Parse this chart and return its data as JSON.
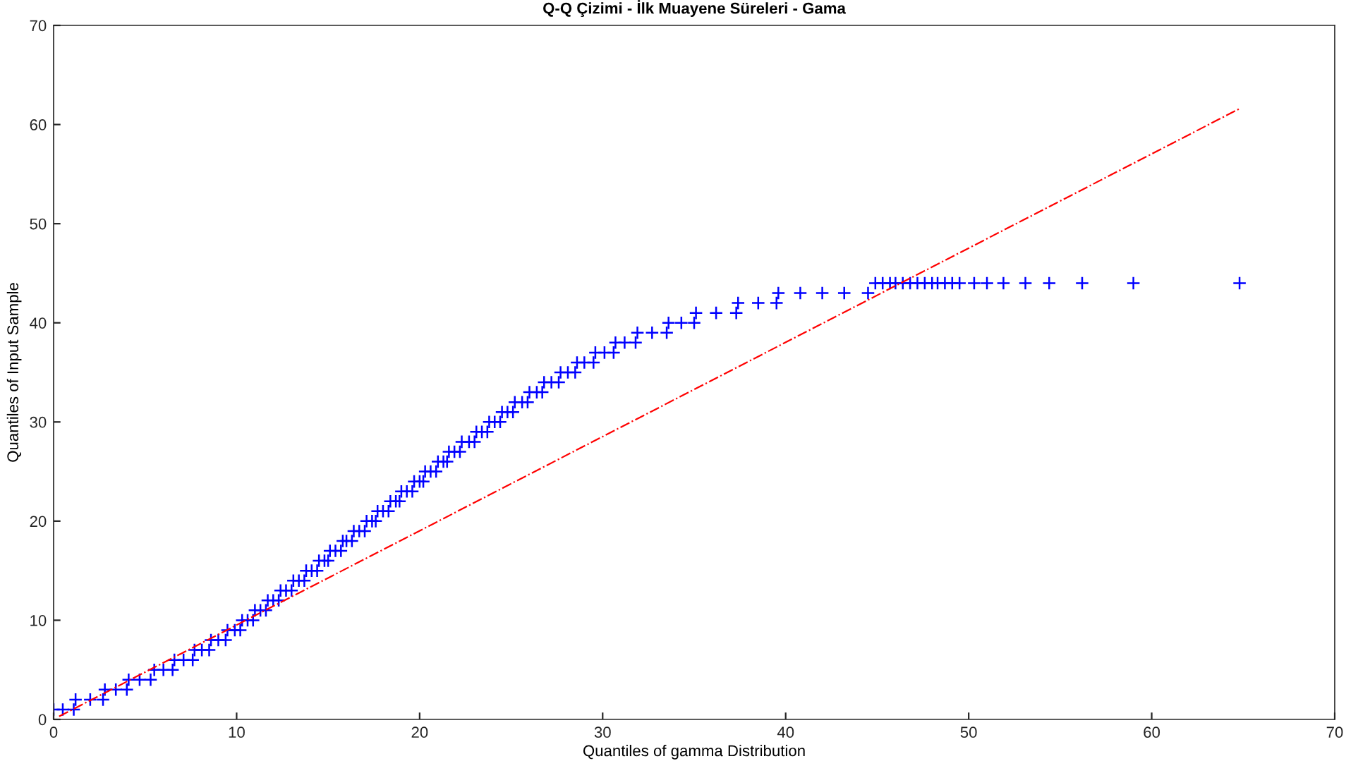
{
  "chart_data": {
    "type": "scatter",
    "title": "Q-Q Çizimi - İlk Muayene Süreleri - Gama",
    "xlabel": "Quantiles of gamma Distribution",
    "ylabel": "Quantiles of Input Sample",
    "xlim": [
      0,
      70
    ],
    "ylim": [
      0,
      70
    ],
    "xticks": [
      0,
      10,
      20,
      30,
      40,
      50,
      60,
      70
    ],
    "yticks": [
      0,
      10,
      20,
      30,
      40,
      50,
      60,
      70
    ],
    "grid": false,
    "legend": false,
    "series": [
      {
        "color": "#0000ff",
        "marker": "cross",
        "x": [
          0.0,
          0.5,
          1.1,
          1.2,
          2.0,
          2.7,
          2.8,
          3.4,
          4.0,
          4.1,
          4.7,
          5.3,
          5.5,
          6.0,
          6.5,
          6.6,
          7.1,
          7.6,
          7.7,
          8.1,
          8.5,
          8.6,
          9.0,
          9.4,
          9.5,
          9.9,
          10.2,
          10.3,
          10.6,
          10.9,
          11.0,
          11.3,
          11.6,
          11.7,
          12.0,
          12.3,
          12.4,
          12.7,
          13.0,
          13.1,
          13.4,
          13.7,
          13.8,
          14.1,
          14.4,
          14.5,
          14.8,
          15.0,
          15.1,
          15.4,
          15.7,
          15.8,
          16.0,
          16.3,
          16.4,
          16.7,
          17.0,
          17.1,
          17.4,
          17.6,
          17.7,
          18.0,
          18.3,
          18.4,
          18.7,
          18.9,
          19.0,
          19.3,
          19.6,
          19.7,
          20.0,
          20.2,
          20.3,
          20.6,
          20.9,
          21.0,
          21.3,
          21.5,
          21.6,
          21.9,
          22.2,
          22.3,
          22.7,
          23.0,
          23.1,
          23.4,
          23.7,
          23.8,
          24.1,
          24.4,
          24.5,
          24.8,
          25.1,
          25.2,
          25.6,
          25.9,
          26.0,
          26.4,
          26.7,
          26.8,
          27.2,
          27.6,
          27.7,
          28.1,
          28.5,
          28.6,
          29.0,
          29.5,
          29.6,
          30.1,
          30.6,
          30.7,
          31.2,
          31.8,
          31.9,
          32.7,
          33.5,
          33.6,
          34.3,
          35.0,
          35.1,
          36.2,
          37.3,
          37.4,
          38.5,
          39.5,
          39.6,
          40.8,
          42.0,
          43.2,
          44.5,
          44.9,
          45.3,
          45.7,
          46.0,
          46.4,
          46.8,
          47.2,
          47.6,
          48.0,
          48.3,
          48.7,
          49.1,
          49.5,
          50.3,
          51.0,
          51.9,
          53.1,
          54.4,
          56.2,
          59.0,
          64.8
        ],
        "values": [
          1,
          1,
          1,
          2,
          2,
          2,
          3,
          3,
          3,
          4,
          4,
          4,
          5,
          5,
          5,
          6,
          6,
          6,
          7,
          7,
          7,
          8,
          8,
          8,
          9,
          9,
          9,
          10,
          10,
          10,
          11,
          11,
          11,
          12,
          12,
          12,
          13,
          13,
          13,
          14,
          14,
          14,
          15,
          15,
          15,
          16,
          16,
          16,
          17,
          17,
          17,
          18,
          18,
          18,
          19,
          19,
          19,
          20,
          20,
          20,
          21,
          21,
          21,
          22,
          22,
          22,
          23,
          23,
          23,
          24,
          24,
          24,
          25,
          25,
          25,
          26,
          26,
          26,
          27,
          27,
          27,
          28,
          28,
          28,
          29,
          29,
          29,
          30,
          30,
          30,
          31,
          31,
          31,
          32,
          32,
          32,
          33,
          33,
          33,
          34,
          34,
          34,
          35,
          35,
          35,
          36,
          36,
          36,
          37,
          37,
          37,
          38,
          38,
          38,
          39,
          39,
          39,
          40,
          40,
          40,
          41,
          41,
          41,
          42,
          42,
          42,
          43,
          43,
          43,
          43,
          43,
          44,
          44,
          44,
          44,
          44,
          44,
          44,
          44,
          44,
          44,
          44,
          44,
          44,
          44,
          44,
          44,
          44,
          44,
          44,
          44,
          44
        ]
      },
      {
        "type": "line",
        "color": "#ff0000",
        "line_style": "dashdot",
        "marker": "none",
        "x": [
          0.3,
          64.8
        ],
        "values": [
          0.3,
          61.6
        ]
      }
    ]
  }
}
